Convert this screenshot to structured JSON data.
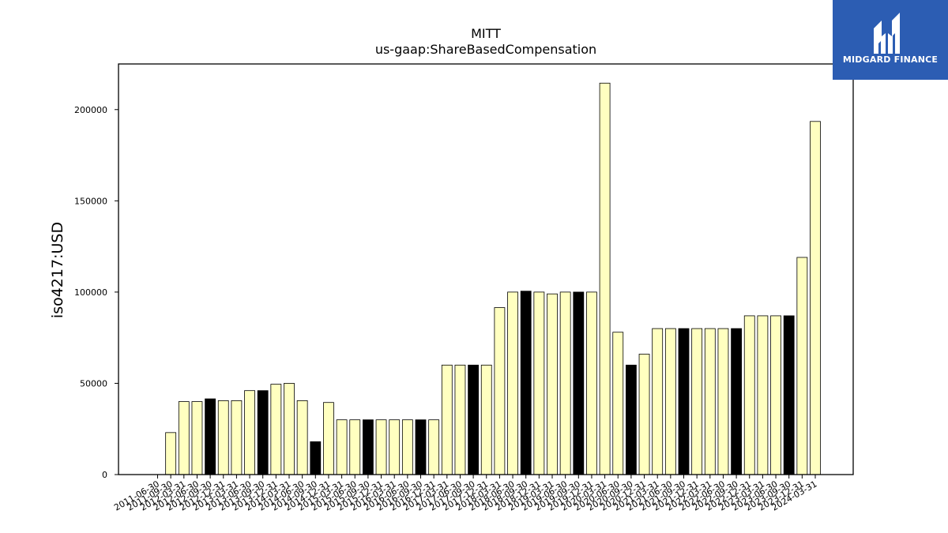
{
  "chart_data": {
    "type": "bar",
    "title": "MITT",
    "subtitle": "us-gaap:ShareBasedCompensation",
    "xlabel": "",
    "ylabel": "iso4217:USD",
    "ylim": [
      0,
      225000
    ],
    "yticks": [
      0,
      50000,
      100000,
      150000,
      200000
    ],
    "grid": false,
    "colors": {
      "quarter": "#ffffc0",
      "annual": "#000000",
      "edge": "#000000"
    },
    "categories": [
      "2011-06-30",
      "2011-09-30",
      "2012-03-31",
      "2012-06-30",
      "2012-09-30",
      "2012-12-31",
      "2013-03-31",
      "2013-06-30",
      "2013-09-30",
      "2013-12-31",
      "2014-03-31",
      "2014-06-30",
      "2014-09-30",
      "2014-12-31",
      "2015-03-31",
      "2015-06-30",
      "2015-09-30",
      "2015-12-31",
      "2016-03-31",
      "2016-06-30",
      "2016-09-30",
      "2016-12-31",
      "2017-03-31",
      "2017-06-30",
      "2017-09-30",
      "2017-12-31",
      "2018-03-31",
      "2018-06-30",
      "2018-09-30",
      "2018-12-31",
      "2019-03-31",
      "2019-06-30",
      "2019-09-30",
      "2019-12-31",
      "2020-03-31",
      "2020-06-30",
      "2020-09-30",
      "2020-12-31",
      "2021-03-31",
      "2021-06-30",
      "2021-09-30",
      "2021-12-31",
      "2022-03-31",
      "2022-06-30",
      "2022-09-30",
      "2022-12-31",
      "2023-03-31",
      "2023-06-30",
      "2023-09-30",
      "2023-12-31",
      "2024-03-31"
    ],
    "values": [
      0,
      23000,
      40000,
      40000,
      41500,
      40500,
      40500,
      46000,
      46000,
      49500,
      50000,
      40500,
      18000,
      39500,
      30000,
      30000,
      30000,
      30000,
      30000,
      30000,
      30000,
      30000,
      60000,
      60000,
      60000,
      60000,
      91500,
      100000,
      100500,
      100000,
      99000,
      100000,
      100000,
      100000,
      214500,
      78000,
      60000,
      66000,
      80000,
      80000,
      80000,
      80000,
      80000,
      80000,
      80000,
      87000,
      87000,
      87000,
      87000,
      119000,
      193500
    ],
    "annual": [
      false,
      false,
      false,
      false,
      true,
      false,
      false,
      false,
      true,
      false,
      false,
      false,
      true,
      false,
      false,
      false,
      true,
      false,
      false,
      false,
      true,
      false,
      false,
      false,
      true,
      false,
      false,
      false,
      true,
      false,
      false,
      false,
      true,
      false,
      false,
      false,
      true,
      false,
      false,
      false,
      true,
      false,
      false,
      false,
      true,
      false,
      false,
      false,
      true,
      false,
      false
    ]
  },
  "logo": {
    "text": "MIDGARD FINANCE",
    "icon": "midgard-logo-icon",
    "background": "#2c5db3"
  }
}
